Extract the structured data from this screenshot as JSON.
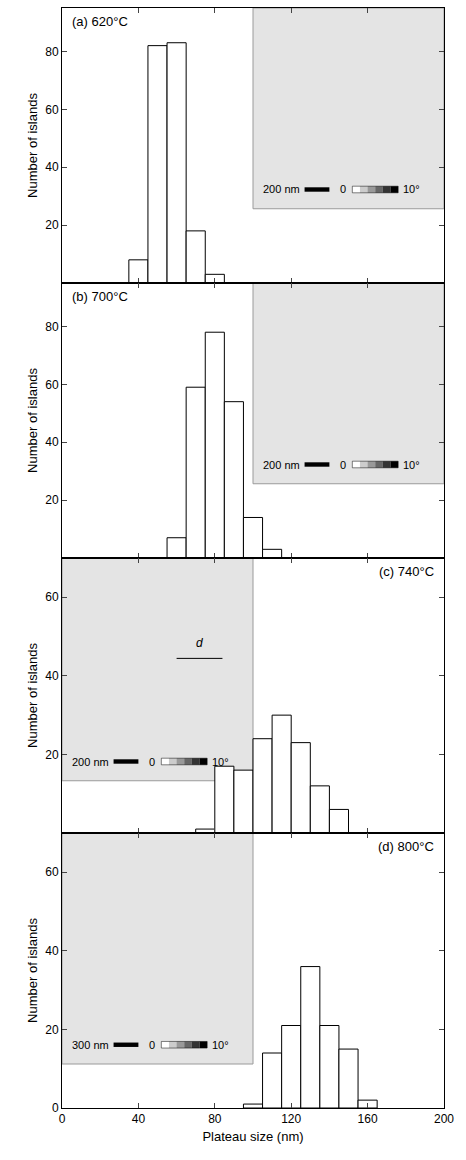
{
  "chart_data": [
    {
      "type": "histogram",
      "title": "(a) 620°C",
      "bins": [
        35,
        45,
        55,
        65,
        75,
        85
      ],
      "values": [
        8,
        82,
        83,
        18,
        3
      ],
      "color": "#ffffff",
      "y_label": "Number of islands",
      "xlim": [
        0,
        200
      ],
      "xticks": [
        0,
        40,
        80,
        120,
        160,
        200
      ],
      "ylim": [
        0,
        95
      ],
      "yticks": [
        20,
        40,
        60,
        80
      ],
      "tick_labels": "y",
      "grid": false,
      "annotations": [
        "200 nm",
        "0",
        "10°"
      ]
    },
    {
      "type": "histogram",
      "title": "(b) 700°C",
      "bins": [
        55,
        65,
        75,
        85,
        95,
        105,
        115
      ],
      "values": [
        7,
        59,
        78,
        54,
        14,
        3
      ],
      "color": "#ffffff",
      "y_label": "Number of islands",
      "xlim": [
        0,
        200
      ],
      "xticks": [
        0,
        40,
        80,
        120,
        160,
        200
      ],
      "ylim": [
        0,
        95
      ],
      "yticks": [
        20,
        40,
        60,
        80
      ],
      "tick_labels": "y",
      "grid": false,
      "annotations": [
        "200 nm",
        "0",
        "10°"
      ]
    },
    {
      "type": "histogram",
      "title": "(c) 740°C",
      "bins": [
        70,
        80,
        90,
        100,
        110,
        120,
        130,
        140,
        150
      ],
      "values": [
        1,
        17,
        16,
        24,
        30,
        23,
        12,
        6
      ],
      "color": "#ffffff",
      "y_label": "Number of islands",
      "xlim": [
        0,
        200
      ],
      "xticks": [
        0,
        40,
        80,
        120,
        160,
        200
      ],
      "ylim": [
        0,
        70
      ],
      "yticks": [
        20,
        40,
        60
      ],
      "tick_labels": "y",
      "grid": false,
      "annotations": [
        "200 nm",
        "0",
        "10°",
        "d"
      ]
    },
    {
      "type": "histogram",
      "title": "(d) 800°C",
      "bins": [
        95,
        105,
        115,
        125,
        135,
        145,
        155,
        165
      ],
      "values": [
        1,
        14,
        21,
        36,
        21,
        15,
        2
      ],
      "color": "#ffffff",
      "x_label": "Plateau size (nm)",
      "y_label": "Number of islands",
      "xlim": [
        0,
        200
      ],
      "xticks": [
        0,
        40,
        80,
        120,
        160,
        200
      ],
      "ylim": [
        0,
        70
      ],
      "yticks": [
        0,
        20,
        40,
        60
      ],
      "grid": false,
      "annotations": [
        "300 nm",
        "0",
        "10°"
      ]
    }
  ]
}
